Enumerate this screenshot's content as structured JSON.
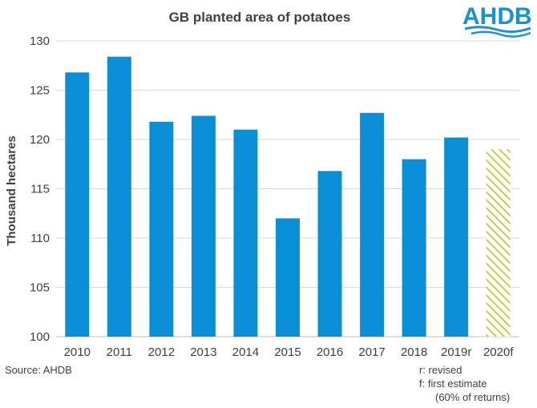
{
  "chart_data": {
    "type": "bar",
    "title": "GB planted area of potatoes",
    "ylabel": "Thousand hectares",
    "xlabel": "",
    "ylim": [
      100,
      130
    ],
    "yticks": [
      100,
      105,
      110,
      115,
      120,
      125,
      130
    ],
    "grid": true,
    "categories": [
      "2010",
      "2011",
      "2012",
      "2013",
      "2014",
      "2015",
      "2016",
      "2017",
      "2018",
      "2019r",
      "2020f"
    ],
    "values": [
      126.8,
      128.4,
      121.8,
      122.4,
      121.0,
      112.0,
      116.8,
      122.7,
      118.0,
      120.2,
      119.0
    ],
    "bar_styles": [
      "solid",
      "solid",
      "solid",
      "solid",
      "solid",
      "solid",
      "solid",
      "solid",
      "solid",
      "solid",
      "hatched"
    ],
    "colors": {
      "bar": "#0a8fd6",
      "hatch": "#b5c627",
      "grid": "#d9d9d9"
    }
  },
  "source": "Source: AHDB",
  "notes": [
    "r: revised",
    "f: first estimate",
    "(60% of returns)"
  ],
  "logo": {
    "text": "AHDB",
    "color": "#1f8fd3"
  }
}
